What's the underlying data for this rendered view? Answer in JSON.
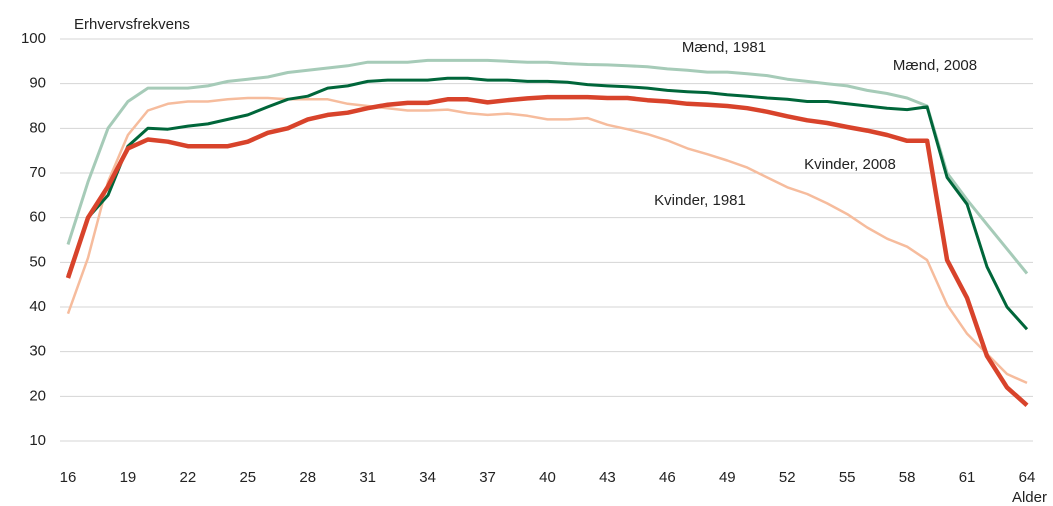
{
  "chart_data": {
    "type": "line",
    "y_label": "Erhvervsfrekvens",
    "x_label": "Alder",
    "x": [
      16,
      17,
      18,
      19,
      20,
      21,
      22,
      23,
      24,
      25,
      26,
      27,
      28,
      29,
      30,
      31,
      32,
      33,
      34,
      35,
      36,
      37,
      38,
      39,
      40,
      41,
      42,
      43,
      44,
      45,
      46,
      47,
      48,
      49,
      50,
      51,
      52,
      53,
      54,
      55,
      56,
      57,
      58,
      59,
      60,
      61,
      62,
      63,
      64
    ],
    "xlim": [
      16,
      64
    ],
    "xticks": [
      16,
      19,
      22,
      25,
      28,
      31,
      34,
      37,
      40,
      43,
      46,
      49,
      52,
      55,
      58,
      61,
      64
    ],
    "ylim": [
      10,
      100
    ],
    "yticks": [
      10,
      20,
      30,
      40,
      50,
      60,
      70,
      80,
      90,
      100
    ],
    "grid": true,
    "series": [
      {
        "name": "Mænd, 1981",
        "color": "#a6cbb8",
        "values": [
          54,
          68,
          80,
          86,
          89,
          89,
          89,
          89.5,
          90.5,
          91,
          91.5,
          92.5,
          93,
          93.5,
          94,
          94.8,
          94.8,
          94.8,
          95.2,
          95.2,
          95.2,
          95.2,
          95,
          94.8,
          94.8,
          94.5,
          94.3,
          94.2,
          94,
          93.8,
          93.3,
          93,
          92.6,
          92.6,
          92.2,
          91.8,
          91,
          90.5,
          90,
          89.5,
          88.5,
          87.8,
          86.8,
          85,
          70,
          64,
          58.5,
          53,
          47.5
        ]
      },
      {
        "name": "Kvinder, 1981",
        "color": "#f6bc9d",
        "values": [
          38.5,
          51,
          68,
          78.5,
          84,
          85.5,
          86,
          86,
          86.5,
          86.8,
          86.8,
          86.5,
          86.5,
          86.5,
          85.5,
          85,
          84.5,
          84,
          84,
          84.2,
          83.4,
          83,
          83.3,
          82.8,
          82,
          82,
          82.3,
          80.8,
          79.8,
          78.7,
          77.3,
          75.5,
          74.2,
          72.8,
          71.2,
          69,
          66.8,
          65.3,
          63.2,
          60.8,
          57.8,
          55.3,
          53.5,
          50.5,
          40.5,
          34,
          29.5,
          25,
          23
        ]
      },
      {
        "name": "Mænd, 2008",
        "color": "#00663a",
        "values": [
          47,
          60,
          65,
          76,
          80,
          79.8,
          80.5,
          81,
          82,
          83,
          84.8,
          86.5,
          87.2,
          89,
          89.5,
          90.5,
          90.8,
          90.8,
          90.8,
          91.2,
          91.2,
          90.8,
          90.8,
          90.5,
          90.5,
          90.3,
          89.8,
          89.5,
          89.3,
          89,
          88.5,
          88.2,
          88,
          87.5,
          87.2,
          86.8,
          86.5,
          86,
          86,
          85.5,
          85,
          84.5,
          84.2,
          84.8,
          69,
          63,
          49,
          40,
          35
        ]
      },
      {
        "name": "Kvinder, 2008",
        "color": "#d8432b",
        "values": [
          46.5,
          60,
          67,
          75.5,
          77.5,
          77,
          76,
          76,
          76,
          77,
          79,
          80,
          82,
          83,
          83.5,
          84.5,
          85.3,
          85.7,
          85.7,
          86.5,
          86.5,
          85.8,
          86.3,
          86.7,
          87,
          87,
          87,
          86.8,
          86.8,
          86.3,
          86,
          85.5,
          85.3,
          85,
          84.5,
          83.7,
          82.7,
          81.8,
          81.2,
          80.3,
          79.5,
          78.5,
          77.2,
          77.2,
          50.5,
          42,
          29,
          22,
          18
        ]
      }
    ]
  }
}
